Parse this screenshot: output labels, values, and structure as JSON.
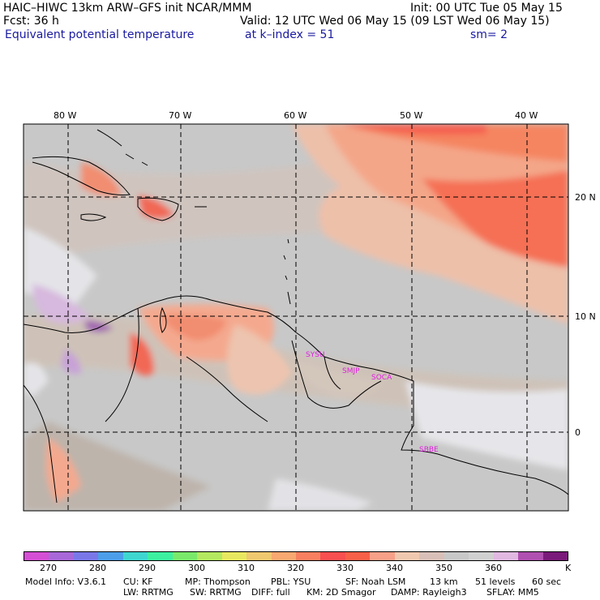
{
  "header": {
    "line1_left": "HAIC–HIWC 13km ARW–GFS init    NCAR/MMM",
    "line1_right": "Init: 00 UTC Tue 05 May 15",
    "line2_left": "Fcst:     36 h",
    "line2_right": "Valid: 12 UTC Wed 06 May 15 (09 LST Wed 06 May 15)",
    "line3_field": "Equivalent potential temperature",
    "line3_level": "at k–index =   51",
    "line3_sm": "sm= 2"
  },
  "map": {
    "lon_labels": [
      "80 W",
      "70 W",
      "60 W",
      "50 W",
      "40 W"
    ],
    "lat_labels": [
      "20 N",
      "10 N",
      "0"
    ],
    "stations": [
      "SYSU",
      "SMJP",
      "SOCA",
      "SBBE"
    ]
  },
  "colorbar": {
    "colors": [
      "#d44fd4",
      "#a868d8",
      "#7a78e8",
      "#4c9ee8",
      "#3fd6d0",
      "#3cf0a0",
      "#7ae86a",
      "#b4e860",
      "#e8e860",
      "#f0c870",
      "#f8a870",
      "#f88060",
      "#f85050",
      "#f86048",
      "#f8a088",
      "#f0c8b0",
      "#d8c0b8",
      "#c8c8c8",
      "#d0d0d0",
      "#e0b8e0",
      "#b050b0",
      "#7a1a7a"
    ],
    "ticks": [
      "270",
      "280",
      "290",
      "300",
      "310",
      "320",
      "330",
      "340",
      "350",
      "360"
    ],
    "unit": "K"
  },
  "model_info": {
    "line1": [
      "Model Info: V3.6.1",
      "CU: KF",
      "MP: Thompson",
      "PBL: YSU",
      "SF: Noah LSM",
      "13 km",
      "51 levels",
      "60 sec"
    ],
    "line2": [
      "LW: RRTMG",
      "SW: RRTMG",
      "DIFF: full",
      "KM: 2D Smagor",
      "DAMP: Rayleigh3",
      "SFLAY: MM5"
    ]
  }
}
